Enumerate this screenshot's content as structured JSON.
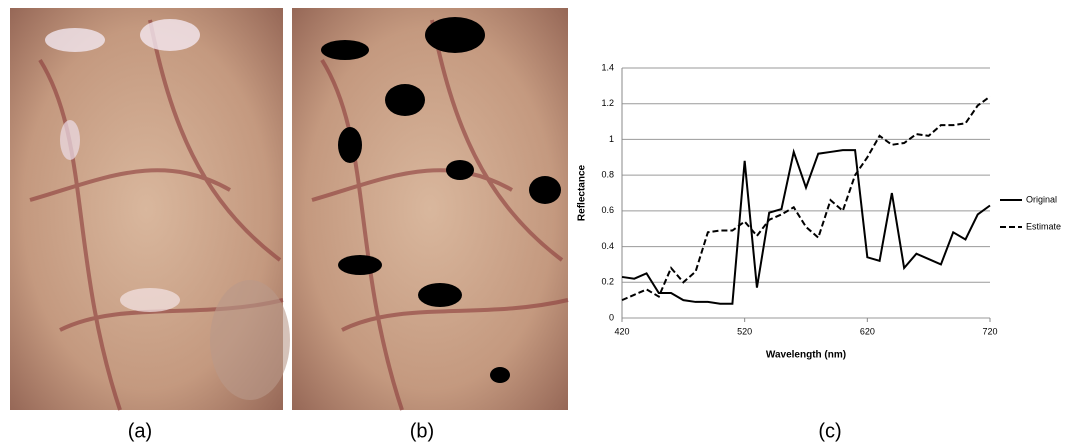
{
  "captions": [
    "(a)",
    "(b)",
    "(c)"
  ],
  "chart_data": {
    "type": "line",
    "x_label": "Wavelength (nm)",
    "y_label": "Reflectance",
    "x": [
      420,
      430,
      440,
      450,
      460,
      470,
      480,
      490,
      500,
      510,
      520,
      530,
      540,
      550,
      560,
      570,
      580,
      590,
      600,
      610,
      620,
      630,
      640,
      650,
      660,
      670,
      680,
      690,
      700,
      710,
      720
    ],
    "series": [
      {
        "name": "Original",
        "color": "#000000",
        "line_style": "solid",
        "values": [
          0.23,
          0.22,
          0.25,
          0.14,
          0.14,
          0.1,
          0.09,
          0.09,
          0.08,
          0.08,
          0.88,
          0.17,
          0.59,
          0.61,
          0.93,
          0.73,
          0.92,
          0.93,
          0.94,
          0.94,
          0.34,
          0.32,
          0.7,
          0.28,
          0.36,
          0.33,
          0.3,
          0.48,
          0.44,
          0.58,
          0.63
        ]
      },
      {
        "name": "Estimate",
        "color": "#000000",
        "line_style": "dashed",
        "values": [
          0.1,
          0.13,
          0.16,
          0.12,
          0.28,
          0.2,
          0.26,
          0.48,
          0.49,
          0.49,
          0.54,
          0.46,
          0.55,
          0.58,
          0.62,
          0.51,
          0.45,
          0.66,
          0.6,
          0.8,
          0.9,
          1.02,
          0.97,
          0.98,
          1.03,
          1.02,
          1.08,
          1.08,
          1.09,
          1.19,
          1.24
        ]
      }
    ],
    "xlim": [
      420,
      720
    ],
    "xticks": [
      420,
      520,
      620,
      720
    ],
    "ylim": [
      0,
      1.4
    ],
    "yticks": [
      0,
      0.2,
      0.4,
      0.6,
      0.8,
      1,
      1.2,
      1.4
    ],
    "grid": true,
    "legend": "right"
  }
}
